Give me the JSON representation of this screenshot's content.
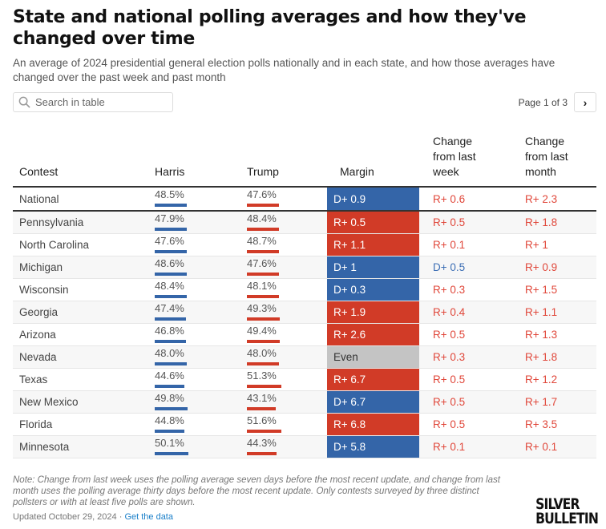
{
  "title": "State and national polling averages and how they've changed over time",
  "subtitle": "An average of 2024 presidential general election polls nationally and in each state, and how those averages have changed over the past week and past month",
  "search": {
    "placeholder": "Search in table"
  },
  "pager": {
    "label": "Page 1 of 3"
  },
  "colors": {
    "dem": "#3465a8",
    "rep": "#d13b27",
    "even": "#c4c4c4",
    "dem_text": "#3d6fb5",
    "rep_text": "#e0473a"
  },
  "chart_data": {
    "type": "table",
    "columns": [
      "Contest",
      "Harris",
      "Trump",
      "Margin",
      "Change from last week",
      "Change from last month"
    ],
    "rows": [
      {
        "contest": "National",
        "harris": 48.5,
        "trump": 47.6,
        "margin": "D+ 0.9",
        "week": "R+ 0.6",
        "month": "R+ 2.3"
      },
      {
        "contest": "Pennsylvania",
        "harris": 47.9,
        "trump": 48.4,
        "margin": "R+ 0.5",
        "week": "R+ 0.5",
        "month": "R+ 1.8"
      },
      {
        "contest": "North Carolina",
        "harris": 47.6,
        "trump": 48.7,
        "margin": "R+ 1.1",
        "week": "R+ 0.1",
        "month": "R+ 1"
      },
      {
        "contest": "Michigan",
        "harris": 48.6,
        "trump": 47.6,
        "margin": "D+ 1",
        "week": "D+ 0.5",
        "month": "R+ 0.9"
      },
      {
        "contest": "Wisconsin",
        "harris": 48.4,
        "trump": 48.1,
        "margin": "D+ 0.3",
        "week": "R+ 0.3",
        "month": "R+ 1.5"
      },
      {
        "contest": "Georgia",
        "harris": 47.4,
        "trump": 49.3,
        "margin": "R+ 1.9",
        "week": "R+ 0.4",
        "month": "R+ 1.1"
      },
      {
        "contest": "Arizona",
        "harris": 46.8,
        "trump": 49.4,
        "margin": "R+ 2.6",
        "week": "R+ 0.5",
        "month": "R+ 1.3"
      },
      {
        "contest": "Nevada",
        "harris": 48.0,
        "trump": 48.0,
        "margin": "Even",
        "week": "R+ 0.3",
        "month": "R+ 1.8"
      },
      {
        "contest": "Texas",
        "harris": 44.6,
        "trump": 51.3,
        "margin": "R+ 6.7",
        "week": "R+ 0.5",
        "month": "R+ 1.2"
      },
      {
        "contest": "New Mexico",
        "harris": 49.8,
        "trump": 43.1,
        "margin": "D+ 6.7",
        "week": "R+ 0.5",
        "month": "R+ 1.7"
      },
      {
        "contest": "Florida",
        "harris": 44.8,
        "trump": 51.6,
        "margin": "R+ 6.8",
        "week": "R+ 0.5",
        "month": "R+ 3.5"
      },
      {
        "contest": "Minnesota",
        "harris": 50.1,
        "trump": 44.3,
        "margin": "D+ 5.8",
        "week": "R+ 0.1",
        "month": "R+ 0.1"
      }
    ]
  },
  "footer": {
    "note": "Note: Change from last week uses the polling average seven days before the most recent update, and change from last month uses the polling average thirty days before the most recent update. Only contests surveyed by three distinct pollsters or with at least five polls are shown.",
    "updated": "Updated October 29, 2024 · ",
    "data_link": "Get the data",
    "logo": "SILVER BULLETIN"
  }
}
